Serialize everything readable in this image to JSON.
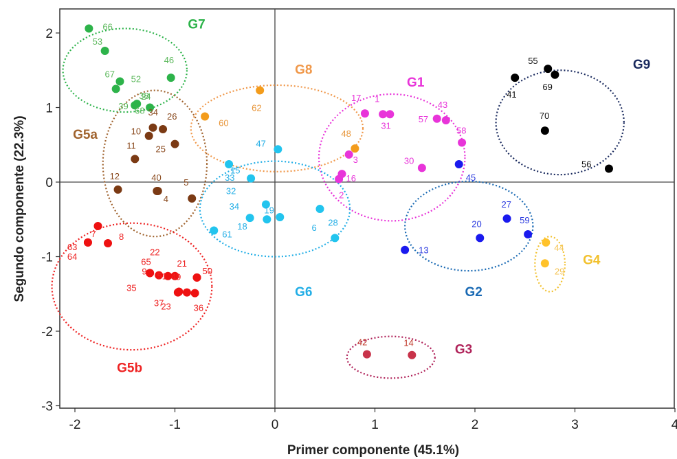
{
  "chart_data": {
    "type": "scatter",
    "xlabel": "Primer componente (45.1%)",
    "ylabel": "Segundo componente (22.3%)",
    "xlim": [
      -2.2,
      4.0
    ],
    "ylim": [
      -3.15,
      2.3
    ],
    "x_ticks": [
      -2,
      -1,
      0,
      1,
      2,
      3,
      4
    ],
    "y_ticks": [
      -3,
      -2,
      -1,
      0,
      1,
      2
    ],
    "x_tick_labels": [
      "-2",
      "-1",
      "0",
      "1",
      "2",
      "3",
      "4"
    ],
    "y_tick_labels": [
      "-3",
      "-2",
      "-1",
      "0",
      "1",
      "2"
    ],
    "reference_lines": {
      "x": 0,
      "y": 0
    },
    "groups": [
      {
        "name": "G7",
        "color": "#2db34a",
        "label_color": "#2db34a",
        "label_text_color": "#5cb85c",
        "points": [
          {
            "label": "66",
            "x": -1.86,
            "y": 2.06
          },
          {
            "label": "53",
            "x": -1.7,
            "y": 1.76
          },
          {
            "label": "52",
            "x": -1.59,
            "y": 1.25
          },
          {
            "label": "67",
            "x": -1.55,
            "y": 1.35
          },
          {
            "label": "39",
            "x": -1.4,
            "y": 1.03
          },
          {
            "label": "24",
            "x": -1.38,
            "y": 1.05
          },
          {
            "label": "68",
            "x": -1.25,
            "y": 1.0
          },
          {
            "label": "38",
            "x": -1.4,
            "y": 1.03
          },
          {
            "label": "46",
            "x": -1.04,
            "y": 1.4
          }
        ]
      },
      {
        "name": "G5a",
        "color": "#7b3a14",
        "label_color": "#a0632e",
        "label_text_color": "#8a4a1e",
        "points": [
          {
            "label": "34",
            "x": -1.22,
            "y": 0.73
          },
          {
            "label": "26",
            "x": -1.12,
            "y": 0.71
          },
          {
            "label": "10",
            "x": -1.26,
            "y": 0.62
          },
          {
            "label": "25",
            "x": -1.0,
            "y": 0.51
          },
          {
            "label": "11",
            "x": -1.4,
            "y": 0.31
          },
          {
            "label": "12",
            "x": -1.57,
            "y": -0.1
          },
          {
            "label": "40",
            "x": -1.18,
            "y": -0.12
          },
          {
            "label": "4",
            "x": -1.17,
            "y": -0.12
          },
          {
            "label": "5",
            "x": -0.83,
            "y": -0.22
          }
        ]
      },
      {
        "name": "G8",
        "color": "#f39c1c",
        "label_color": "#f0984a",
        "label_text_color": "#e8963a",
        "points": [
          {
            "label": "62",
            "x": -0.15,
            "y": 1.23
          },
          {
            "label": "60",
            "x": -0.7,
            "y": 0.88
          },
          {
            "label": "48",
            "x": 0.8,
            "y": 0.45
          }
        ]
      },
      {
        "name": "G1",
        "color": "#e834d9",
        "label_color": "#e834d9",
        "label_text_color": "#e834d9",
        "points": [
          {
            "label": "17",
            "x": 0.9,
            "y": 0.92
          },
          {
            "label": "1",
            "x": 1.08,
            "y": 0.91
          },
          {
            "label": "31",
            "x": 1.15,
            "y": 0.91
          },
          {
            "label": "57",
            "x": 1.62,
            "y": 0.85
          },
          {
            "label": "43",
            "x": 1.71,
            "y": 0.83
          },
          {
            "label": "58",
            "x": 1.87,
            "y": 0.53
          },
          {
            "label": "30",
            "x": 1.47,
            "y": 0.19
          },
          {
            "label": "3",
            "x": 0.74,
            "y": 0.37
          },
          {
            "label": "16",
            "x": 0.67,
            "y": 0.11
          },
          {
            "label": "2",
            "x": 0.64,
            "y": 0.04
          }
        ]
      },
      {
        "name": "G9",
        "color": "#000000",
        "label_color": "#1a2a5e",
        "label_text_color": "#111111",
        "points": [
          {
            "label": "55",
            "x": 2.73,
            "y": 1.52
          },
          {
            "label": "69",
            "x": 2.8,
            "y": 1.44
          },
          {
            "label": "41",
            "x": 2.4,
            "y": 1.4
          },
          {
            "label": "70",
            "x": 2.7,
            "y": 0.69
          },
          {
            "label": "56",
            "x": 3.34,
            "y": 0.18
          }
        ]
      },
      {
        "name": "G6",
        "color": "#22c4ee",
        "label_color": "#22aee6",
        "label_text_color": "#22aee6",
        "points": [
          {
            "label": "47",
            "x": 0.03,
            "y": 0.44
          },
          {
            "label": "33",
            "x": -0.46,
            "y": 0.24
          },
          {
            "label": "15",
            "x": -0.24,
            "y": 0.05
          },
          {
            "label": "32",
            "x": -0.09,
            "y": -0.3
          },
          {
            "label": "19",
            "x": -0.08,
            "y": -0.5
          },
          {
            "label": "34",
            "x": -0.25,
            "y": -0.48
          },
          {
            "label": "6",
            "x": 0.45,
            "y": -0.36
          },
          {
            "label": "28",
            "x": 0.6,
            "y": -0.75
          },
          {
            "label": "61",
            "x": -0.61,
            "y": -0.65
          },
          {
            "label": "18",
            "x": 0.05,
            "y": -0.47
          }
        ]
      },
      {
        "name": "G2",
        "color": "#1a1aee",
        "label_color": "#1a6ab4",
        "label_text_color": "#2a3adf",
        "points": [
          {
            "label": "45",
            "x": 1.84,
            "y": 0.24
          },
          {
            "label": "27",
            "x": 2.32,
            "y": -0.49
          },
          {
            "label": "59",
            "x": 2.53,
            "y": -0.7
          },
          {
            "label": "20",
            "x": 2.05,
            "y": -0.75
          },
          {
            "label": "13",
            "x": 1.3,
            "y": -0.91
          }
        ]
      },
      {
        "name": "G4",
        "color": "#ffc22a",
        "label_color": "#f2c12e",
        "label_text_color": "#f5c65a",
        "points": [
          {
            "label": "44",
            "x": 2.71,
            "y": -0.81
          },
          {
            "label": "29",
            "x": 2.7,
            "y": -1.09
          }
        ]
      },
      {
        "name": "G5b",
        "color": "#ee1111",
        "label_color": "#ee2222",
        "label_text_color": "#ee2222",
        "points": [
          {
            "label": "7",
            "x": -1.77,
            "y": -0.59
          },
          {
            "label": "8",
            "x": -1.67,
            "y": -0.82
          },
          {
            "label": "63",
            "x": -1.87,
            "y": -0.81
          },
          {
            "label": "64",
            "x": -1.87,
            "y": -0.81
          },
          {
            "label": "22",
            "x": -1.25,
            "y": -1.22
          },
          {
            "label": "65",
            "x": -1.16,
            "y": -1.25
          },
          {
            "label": "9",
            "x": -1.07,
            "y": -1.26
          },
          {
            "label": "51",
            "x": -1.0,
            "y": -1.26
          },
          {
            "label": "21",
            "x": -0.78,
            "y": -1.28
          },
          {
            "label": "49",
            "x": -0.97,
            "y": -1.48
          },
          {
            "label": "50",
            "x": -0.78,
            "y": -1.28
          },
          {
            "label": "35",
            "x": -1.25,
            "y": -1.22
          },
          {
            "label": "37",
            "x": -0.88,
            "y": -1.48
          },
          {
            "label": "23",
            "x": -0.96,
            "y": -1.47
          },
          {
            "label": "36",
            "x": -0.8,
            "y": -1.49
          }
        ]
      },
      {
        "name": "G3",
        "color": "#c8334a",
        "label_color": "#b0235a",
        "label_text_color": "#c0392b",
        "points": [
          {
            "label": "42",
            "x": 0.92,
            "y": -2.31
          },
          {
            "label": "14",
            "x": 1.37,
            "y": -2.32
          }
        ]
      }
    ],
    "group_ellipses": [
      {
        "group": "G7",
        "cx": -1.5,
        "cy": 1.5,
        "rx": 0.62,
        "ry": 0.56
      },
      {
        "group": "G5a",
        "cx": -1.2,
        "cy": 0.25,
        "rx": 0.52,
        "ry": 0.98
      },
      {
        "group": "G8",
        "cx": 0.02,
        "cy": 0.72,
        "rx": 0.86,
        "ry": 0.58
      },
      {
        "group": "G1",
        "cx": 1.17,
        "cy": 0.33,
        "rx": 0.73,
        "ry": 0.85
      },
      {
        "group": "G9",
        "cx": 2.85,
        "cy": 0.8,
        "rx": 0.64,
        "ry": 0.7
      },
      {
        "group": "G6",
        "cx": 0.0,
        "cy": -0.36,
        "rx": 0.75,
        "ry": 0.64
      },
      {
        "group": "G2",
        "cx": 1.94,
        "cy": -0.59,
        "rx": 0.64,
        "ry": 0.6
      },
      {
        "group": "G4",
        "cx": 2.75,
        "cy": -1.1,
        "rx": 0.15,
        "ry": 0.37
      },
      {
        "group": "G5b",
        "cx": -1.43,
        "cy": -1.4,
        "rx": 0.8,
        "ry": 0.85
      },
      {
        "group": "G3",
        "cx": 1.16,
        "cy": -2.35,
        "rx": 0.44,
        "ry": 0.28
      }
    ],
    "group_label_positions": [
      {
        "group": "G7",
        "x": -0.87,
        "y": 2.06
      },
      {
        "group": "G5a",
        "x": -2.02,
        "y": 0.58
      },
      {
        "group": "G8",
        "x": 0.2,
        "y": 1.45
      },
      {
        "group": "G1",
        "x": 1.32,
        "y": 1.28
      },
      {
        "group": "G9",
        "x": 3.58,
        "y": 1.52
      },
      {
        "group": "G6",
        "x": 0.2,
        "y": -1.53
      },
      {
        "group": "G2",
        "x": 1.9,
        "y": -1.53
      },
      {
        "group": "G4",
        "x": 3.08,
        "y": -1.1
      },
      {
        "group": "G5b",
        "x": -1.58,
        "y": -2.55
      },
      {
        "group": "G3",
        "x": 1.8,
        "y": -2.3
      }
    ],
    "label_offsets_note": "",
    "grid": false
  }
}
